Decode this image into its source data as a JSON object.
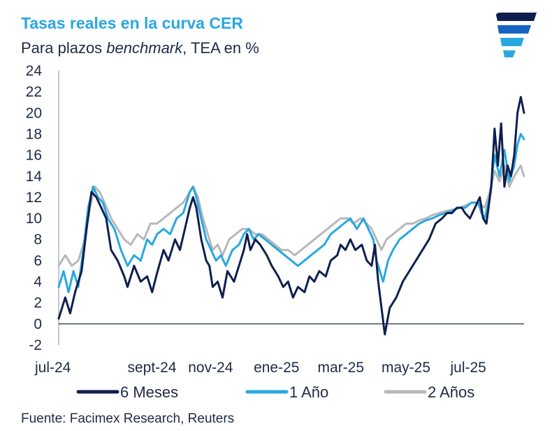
{
  "header": {
    "title": "Tasas reales en la curva CER",
    "subtitle_prefix": "Para plazos ",
    "subtitle_emph": "benchmark",
    "subtitle_suffix": ", TEA en %"
  },
  "footer": {
    "source": "Fuente: Facimex Research, Reuters"
  },
  "logo": {
    "icon": "facimex-logo-icon",
    "colors": [
      "#0f1f4d",
      "#1565c0",
      "#29a8e0"
    ]
  },
  "chart_data": {
    "type": "line",
    "title": "Tasas reales en la curva CER",
    "subtitle": "Para plazos benchmark, TEA en %",
    "xlabel": "",
    "ylabel": "",
    "ylim": [
      -2,
      24
    ],
    "yticks": [
      24,
      22,
      20,
      18,
      16,
      14,
      12,
      10,
      8,
      6,
      4,
      2,
      0,
      -2
    ],
    "xlim": [
      0,
      14.2
    ],
    "xticks": [
      {
        "label": "jul-24",
        "x": 0
      },
      {
        "label": "sept-24",
        "x": 2.1
      },
      {
        "label": "nov-24",
        "x": 3.95
      },
      {
        "label": "ene-25",
        "x": 5.95
      },
      {
        "label": "mar-25",
        "x": 7.9
      },
      {
        "label": "may-25",
        "x": 9.85
      },
      {
        "label": "jul-25",
        "x": 11.95
      }
    ],
    "grid": false,
    "legend_position": "bottom",
    "series": [
      {
        "name": "6 Meses",
        "color": "#0f1f4d",
        "points": [
          [
            0,
            0.5
          ],
          [
            0.2,
            2.5
          ],
          [
            0.35,
            1
          ],
          [
            0.5,
            3
          ],
          [
            0.7,
            5
          ],
          [
            0.85,
            9
          ],
          [
            1.0,
            12.5
          ],
          [
            1.15,
            12
          ],
          [
            1.3,
            11
          ],
          [
            1.45,
            10
          ],
          [
            1.6,
            7
          ],
          [
            1.8,
            6
          ],
          [
            2.0,
            4.5
          ],
          [
            2.1,
            3.5
          ],
          [
            2.3,
            5.5
          ],
          [
            2.5,
            4
          ],
          [
            2.7,
            4.5
          ],
          [
            2.85,
            3
          ],
          [
            3.0,
            4.8
          ],
          [
            3.2,
            7
          ],
          [
            3.35,
            6
          ],
          [
            3.55,
            8
          ],
          [
            3.7,
            7
          ],
          [
            3.85,
            9
          ],
          [
            4.0,
            11
          ],
          [
            4.1,
            12
          ],
          [
            4.2,
            11
          ],
          [
            4.35,
            8
          ],
          [
            4.5,
            6
          ],
          [
            4.6,
            5.5
          ],
          [
            4.7,
            3.5
          ],
          [
            4.85,
            4
          ],
          [
            5.0,
            2.5
          ],
          [
            5.15,
            5
          ],
          [
            5.35,
            4
          ],
          [
            5.5,
            5.5
          ],
          [
            5.65,
            7
          ],
          [
            5.75,
            8.5
          ],
          [
            5.85,
            7
          ],
          [
            6.0,
            8
          ],
          [
            6.15,
            7.5
          ],
          [
            6.35,
            6.5
          ],
          [
            6.5,
            5.5
          ],
          [
            6.7,
            4.5
          ],
          [
            6.85,
            3.5
          ],
          [
            7.0,
            4
          ],
          [
            7.15,
            2.5
          ],
          [
            7.3,
            3.5
          ],
          [
            7.5,
            3
          ],
          [
            7.65,
            4.5
          ],
          [
            7.8,
            4
          ],
          [
            7.95,
            5
          ],
          [
            8.15,
            4.5
          ],
          [
            8.3,
            6
          ],
          [
            8.5,
            6.5
          ],
          [
            8.6,
            7.5
          ],
          [
            8.75,
            7
          ],
          [
            8.9,
            8
          ],
          [
            9.05,
            7
          ],
          [
            9.25,
            7.5
          ],
          [
            9.4,
            6
          ],
          [
            9.55,
            5.5
          ],
          [
            9.65,
            7.5
          ],
          [
            9.75,
            4
          ],
          [
            9.85,
            1.5
          ],
          [
            9.95,
            -1
          ],
          [
            10.1,
            1.5
          ],
          [
            10.3,
            2.5
          ],
          [
            10.5,
            4
          ],
          [
            10.7,
            5
          ],
          [
            10.9,
            6
          ],
          [
            11.1,
            7
          ],
          [
            11.3,
            8
          ],
          [
            11.5,
            9.5
          ],
          [
            11.7,
            10
          ],
          [
            11.85,
            10.5
          ],
          [
            12.0,
            10.5
          ],
          [
            12.15,
            11
          ],
          [
            12.3,
            11
          ],
          [
            12.4,
            10.5
          ],
          [
            12.55,
            10
          ],
          [
            12.7,
            11
          ],
          [
            12.85,
            12
          ],
          [
            12.95,
            10
          ],
          [
            13.05,
            9.5
          ],
          [
            13.2,
            13
          ],
          [
            13.3,
            18.5
          ],
          [
            13.4,
            15
          ],
          [
            13.5,
            19
          ],
          [
            13.6,
            13
          ],
          [
            13.7,
            15
          ],
          [
            13.8,
            14
          ],
          [
            13.9,
            16
          ],
          [
            14.0,
            20
          ],
          [
            14.1,
            21.5
          ],
          [
            14.2,
            20
          ]
        ]
      },
      {
        "name": "1 Año",
        "color": "#29a8e0",
        "points": [
          [
            0,
            3.5
          ],
          [
            0.15,
            5
          ],
          [
            0.3,
            3
          ],
          [
            0.45,
            5
          ],
          [
            0.6,
            3.5
          ],
          [
            0.75,
            7
          ],
          [
            0.9,
            11
          ],
          [
            1.05,
            13
          ],
          [
            1.2,
            12
          ],
          [
            1.35,
            11.5
          ],
          [
            1.5,
            10
          ],
          [
            1.7,
            9
          ],
          [
            1.9,
            7
          ],
          [
            2.1,
            5.5
          ],
          [
            2.3,
            6.5
          ],
          [
            2.5,
            6
          ],
          [
            2.7,
            8
          ],
          [
            2.85,
            7.5
          ],
          [
            3.0,
            8.5
          ],
          [
            3.2,
            9
          ],
          [
            3.4,
            8.5
          ],
          [
            3.6,
            10
          ],
          [
            3.8,
            10.5
          ],
          [
            4.0,
            12.5
          ],
          [
            4.1,
            13
          ],
          [
            4.2,
            12
          ],
          [
            4.35,
            10
          ],
          [
            4.5,
            8
          ],
          [
            4.65,
            7
          ],
          [
            4.8,
            6
          ],
          [
            4.95,
            6.5
          ],
          [
            5.1,
            5.5
          ],
          [
            5.3,
            7
          ],
          [
            5.5,
            7.5
          ],
          [
            5.65,
            8.5
          ],
          [
            5.8,
            9
          ],
          [
            5.95,
            8
          ],
          [
            6.1,
            8.5
          ],
          [
            6.3,
            8
          ],
          [
            6.5,
            7.5
          ],
          [
            6.7,
            7
          ],
          [
            6.9,
            6.5
          ],
          [
            7.1,
            6
          ],
          [
            7.3,
            5.5
          ],
          [
            7.5,
            6
          ],
          [
            7.7,
            6.5
          ],
          [
            7.9,
            7
          ],
          [
            8.1,
            7.5
          ],
          [
            8.3,
            8.5
          ],
          [
            8.5,
            9
          ],
          [
            8.7,
            9.5
          ],
          [
            8.9,
            10
          ],
          [
            9.1,
            9
          ],
          [
            9.3,
            10
          ],
          [
            9.45,
            9
          ],
          [
            9.6,
            8
          ],
          [
            9.7,
            6
          ],
          [
            9.8,
            5
          ],
          [
            9.9,
            4
          ],
          [
            10.05,
            6
          ],
          [
            10.2,
            7
          ],
          [
            10.4,
            8
          ],
          [
            10.6,
            8.5
          ],
          [
            10.8,
            9
          ],
          [
            11.0,
            9.5
          ],
          [
            11.2,
            9.8
          ],
          [
            11.4,
            10
          ],
          [
            11.6,
            10.3
          ],
          [
            11.8,
            10.5
          ],
          [
            12.0,
            10.7
          ],
          [
            12.2,
            11
          ],
          [
            12.4,
            11
          ],
          [
            12.6,
            11.5
          ],
          [
            12.8,
            11.5
          ],
          [
            12.9,
            10.5
          ],
          [
            13.0,
            10
          ],
          [
            13.15,
            12
          ],
          [
            13.3,
            16
          ],
          [
            13.45,
            14
          ],
          [
            13.6,
            16.5
          ],
          [
            13.75,
            13.5
          ],
          [
            13.9,
            15
          ],
          [
            14.0,
            17
          ],
          [
            14.1,
            18
          ],
          [
            14.2,
            17.5
          ]
        ]
      },
      {
        "name": "2 Años",
        "color": "#b8b8b8",
        "points": [
          [
            0,
            5.5
          ],
          [
            0.2,
            6.5
          ],
          [
            0.4,
            5.5
          ],
          [
            0.6,
            6
          ],
          [
            0.8,
            8
          ],
          [
            0.95,
            11
          ],
          [
            1.1,
            13
          ],
          [
            1.25,
            12.5
          ],
          [
            1.4,
            11.5
          ],
          [
            1.6,
            10
          ],
          [
            1.8,
            9
          ],
          [
            2.0,
            8
          ],
          [
            2.2,
            7.5
          ],
          [
            2.4,
            8.5
          ],
          [
            2.6,
            8
          ],
          [
            2.8,
            9.5
          ],
          [
            3.0,
            9.5
          ],
          [
            3.2,
            10
          ],
          [
            3.4,
            10.5
          ],
          [
            3.6,
            11
          ],
          [
            3.8,
            11.5
          ],
          [
            4.0,
            12.5
          ],
          [
            4.1,
            13
          ],
          [
            4.25,
            12
          ],
          [
            4.4,
            10
          ],
          [
            4.55,
            8.5
          ],
          [
            4.7,
            7
          ],
          [
            4.85,
            7.5
          ],
          [
            5.0,
            6.5
          ],
          [
            5.2,
            8
          ],
          [
            5.4,
            8.5
          ],
          [
            5.6,
            9
          ],
          [
            5.8,
            9
          ],
          [
            6.0,
            8.5
          ],
          [
            6.2,
            8.5
          ],
          [
            6.4,
            8
          ],
          [
            6.6,
            7.5
          ],
          [
            6.8,
            7
          ],
          [
            7.0,
            7
          ],
          [
            7.2,
            6.5
          ],
          [
            7.4,
            7
          ],
          [
            7.6,
            7.5
          ],
          [
            7.8,
            8
          ],
          [
            8.0,
            8.5
          ],
          [
            8.2,
            9
          ],
          [
            8.4,
            9.5
          ],
          [
            8.6,
            10
          ],
          [
            8.8,
            10
          ],
          [
            9.0,
            9.5
          ],
          [
            9.2,
            10
          ],
          [
            9.4,
            9.5
          ],
          [
            9.55,
            9
          ],
          [
            9.7,
            8
          ],
          [
            9.85,
            7
          ],
          [
            10.0,
            8
          ],
          [
            10.2,
            8.5
          ],
          [
            10.4,
            9
          ],
          [
            10.6,
            9.5
          ],
          [
            10.8,
            9.5
          ],
          [
            11.0,
            9.8
          ],
          [
            11.2,
            10
          ],
          [
            11.4,
            10.3
          ],
          [
            11.6,
            10.5
          ],
          [
            11.8,
            10.7
          ],
          [
            12.0,
            10.8
          ],
          [
            12.2,
            11
          ],
          [
            12.4,
            11.2
          ],
          [
            12.6,
            11.5
          ],
          [
            12.8,
            11.5
          ],
          [
            13.0,
            11
          ],
          [
            13.15,
            12.5
          ],
          [
            13.3,
            14.5
          ],
          [
            13.45,
            13.5
          ],
          [
            13.6,
            15
          ],
          [
            13.75,
            13
          ],
          [
            13.9,
            14
          ],
          [
            14.0,
            14.5
          ],
          [
            14.1,
            15
          ],
          [
            14.2,
            14
          ]
        ]
      }
    ]
  }
}
